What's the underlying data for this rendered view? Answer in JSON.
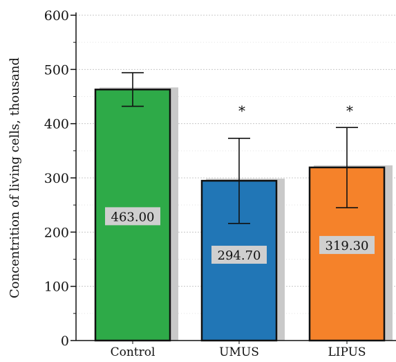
{
  "chart_data": {
    "type": "bar",
    "categories": [
      "Control",
      "UMUS",
      "LIPUS"
    ],
    "values": [
      463.0,
      294.7,
      319.3
    ],
    "value_labels": [
      "463.00",
      "294.70",
      "319.30"
    ],
    "error_low": [
      432,
      216,
      245
    ],
    "error_high": [
      494,
      373,
      393
    ],
    "significance": [
      "",
      "*",
      "*"
    ],
    "colors": [
      "#2eaa48",
      "#2176b6",
      "#f5822a"
    ],
    "title": "",
    "xlabel": "",
    "ylabel": "Concentrition of living cells, thousand",
    "ylim": [
      0,
      600
    ],
    "yticks": [
      0,
      100,
      200,
      300,
      400,
      500,
      600
    ],
    "grid": true
  }
}
